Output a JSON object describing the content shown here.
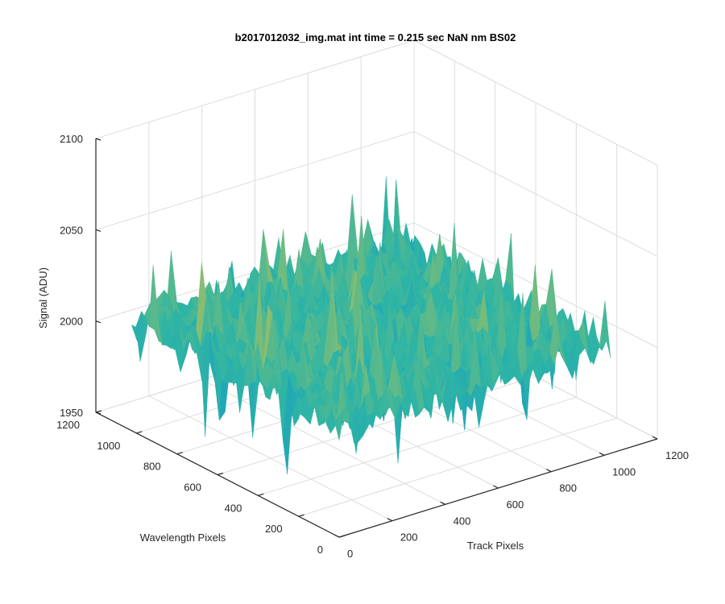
{
  "chart_data": {
    "type": "surface",
    "title": "b2017012032_img.mat int time = 0.215 sec  NaN nm BS02",
    "xlabel": "Track Pixels",
    "ylabel": "Wavelength Pixels",
    "zlabel": "Signal (ADU)",
    "xlim": [
      0,
      1200
    ],
    "ylim": [
      0,
      1200
    ],
    "zlim": [
      1950,
      2100
    ],
    "xticks": [
      "0",
      "200",
      "400",
      "600",
      "800",
      "1000",
      "1200"
    ],
    "yticks": [
      "0",
      "200",
      "400",
      "600",
      "800",
      "1000",
      "1200"
    ],
    "zticks": [
      "1950",
      "2000",
      "2050",
      "2100"
    ],
    "grid": true,
    "colormap": "parula",
    "data_extent": {
      "x": [
        0,
        1024
      ],
      "y": [
        0,
        1024
      ]
    },
    "baseline_signal": 2010,
    "noise_amplitude": 12,
    "colors": {
      "low": "#0a8fd6",
      "mid": "#2fb5a4",
      "high": "#e8c63a"
    }
  }
}
